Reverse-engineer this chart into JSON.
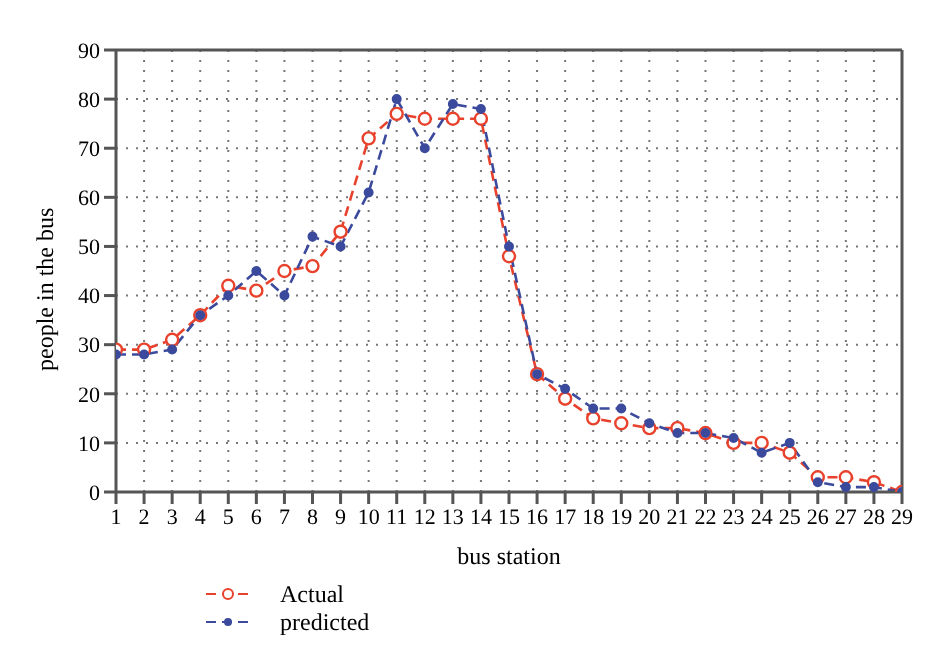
{
  "chart_data": {
    "type": "line",
    "xlabel": "bus station",
    "ylabel": "people in the bus",
    "x": [
      1,
      2,
      3,
      4,
      5,
      6,
      7,
      8,
      9,
      10,
      11,
      12,
      13,
      14,
      15,
      16,
      17,
      18,
      19,
      20,
      21,
      22,
      23,
      24,
      25,
      26,
      27,
      28,
      29
    ],
    "series": [
      {
        "name": "Actual",
        "color": "#e8412c",
        "values": [
          29,
          29,
          31,
          36,
          42,
          41,
          45,
          46,
          53,
          72,
          77,
          76,
          76,
          76,
          48,
          24,
          19,
          15,
          14,
          13,
          13,
          12,
          10,
          10,
          8,
          3,
          3,
          2,
          0
        ]
      },
      {
        "name": "predicted",
        "color": "#3b4a9c",
        "values": [
          28,
          28,
          29,
          36,
          40,
          45,
          40,
          52,
          50,
          61,
          80,
          70,
          79,
          78,
          50,
          24,
          21,
          17,
          17,
          14,
          12,
          12,
          11,
          8,
          10,
          2,
          1,
          1,
          0
        ]
      }
    ],
    "xlim": [
      1,
      29
    ],
    "xticks": [
      1,
      2,
      3,
      4,
      5,
      6,
      7,
      8,
      9,
      10,
      11,
      12,
      13,
      14,
      15,
      16,
      17,
      18,
      19,
      20,
      21,
      22,
      23,
      24,
      25,
      26,
      27,
      28,
      29
    ],
    "ylim": [
      0,
      90
    ],
    "yticks": [
      0,
      10,
      20,
      30,
      40,
      50,
      60,
      70,
      80,
      90
    ],
    "grid": true,
    "legend": "bottom left",
    "marker": "circle",
    "line_style": "dashed"
  }
}
